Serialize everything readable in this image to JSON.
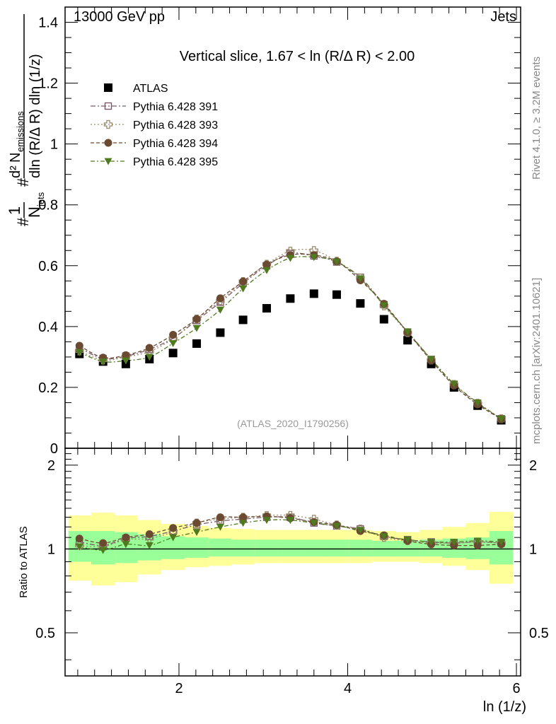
{
  "header": {
    "left": "13000 GeV pp",
    "right": "Jets"
  },
  "side_text": {
    "rivet": "Rivet 4.1.0, ≥ 3.2M events",
    "mcplots": "mcplots.cern.ch [arXiv:2401.10621]"
  },
  "colors": {
    "atlas": "#000000",
    "p391": "#7a5a6a",
    "p393": "#9a8a6a",
    "p394": "#6b4a32",
    "p395": "#4f7a1e",
    "band_green": "#99ff99",
    "band_yellow": "#ffff99"
  },
  "chart_data": [
    {
      "type": "scatter",
      "title": "Vertical slice, 1.67 < ln (R/Δ R) < 2.00",
      "xlabel": "ln (1/z)",
      "ylabel": "# 1/N_jets # d² N_emissions / dln (R/Δ R) dln (1/z)",
      "ylabel_parts": {
        "n_emissions": "N",
        "emissions_sub": "emissions",
        "d_squared": "d² ",
        "den": "dln (R/Δ R) dln (1/z)",
        "one": "1",
        "n_jets": "N",
        "jets_sub": "jets",
        "hash": "#"
      },
      "xlim": [
        0.65,
        6.05
      ],
      "ylim": [
        0,
        1.45
      ],
      "yticks": [
        "0",
        "0.2",
        "0.4",
        "0.6",
        "0.8",
        "1",
        "1.2",
        "1.4"
      ],
      "xticks": [
        "2",
        "4",
        "6"
      ],
      "legend_position": "top-left",
      "watermark": "(ATLAS_2020_I1790256)",
      "x": [
        0.82,
        1.1,
        1.37,
        1.65,
        1.93,
        2.21,
        2.49,
        2.76,
        3.04,
        3.32,
        3.6,
        3.87,
        4.15,
        4.43,
        4.71,
        4.99,
        5.26,
        5.54,
        5.82
      ],
      "series": [
        {
          "name": "ATLAS",
          "marker": "square-filled",
          "values": [
            0.31,
            0.285,
            0.277,
            0.293,
            0.313,
            0.344,
            0.38,
            0.422,
            0.46,
            0.492,
            0.508,
            0.505,
            0.476,
            0.424,
            0.355,
            0.277,
            0.2,
            0.14,
            0.092
          ]
        },
        {
          "name": "Pythia 6.428 391",
          "marker": "square-open",
          "values": [
            0.33,
            0.295,
            0.303,
            0.325,
            0.362,
            0.42,
            0.48,
            0.542,
            0.6,
            0.64,
            0.632,
            0.612,
            0.562,
            0.472,
            0.382,
            0.292,
            0.21,
            0.148,
            0.097
          ]
        },
        {
          "name": "Pythia 6.428 393",
          "marker": "cross-open",
          "values": [
            0.32,
            0.29,
            0.3,
            0.318,
            0.36,
            0.425,
            0.485,
            0.548,
            0.605,
            0.648,
            0.65,
            0.615,
            0.56,
            0.468,
            0.38,
            0.29,
            0.21,
            0.148,
            0.097
          ]
        },
        {
          "name": "Pythia 6.428 394",
          "marker": "circle-filled",
          "values": [
            0.337,
            0.298,
            0.306,
            0.33,
            0.373,
            0.425,
            0.493,
            0.548,
            0.604,
            0.635,
            0.635,
            0.614,
            0.552,
            0.475,
            0.381,
            0.288,
            0.206,
            0.144,
            0.096
          ]
        },
        {
          "name": "Pythia 6.428 395",
          "marker": "triangle-down-filled",
          "values": [
            0.315,
            0.285,
            0.288,
            0.3,
            0.345,
            0.395,
            0.455,
            0.525,
            0.585,
            0.625,
            0.628,
            0.613,
            0.558,
            0.47,
            0.383,
            0.293,
            0.212,
            0.15,
            0.097
          ]
        }
      ]
    },
    {
      "type": "scatter",
      "title": "",
      "xlabel": "ln (1/z)",
      "ylabel": "Ratio to ATLAS",
      "xlim": [
        0.65,
        6.05
      ],
      "ylim": [
        0.35,
        2.3
      ],
      "yticks": [
        "0.5",
        "1",
        "2"
      ],
      "reference_line": 1,
      "x": [
        0.82,
        1.1,
        1.37,
        1.65,
        1.93,
        2.21,
        2.49,
        2.76,
        3.04,
        3.32,
        3.6,
        3.87,
        4.15,
        4.43,
        4.71,
        4.99,
        5.26,
        5.54,
        5.82
      ],
      "x_edges": [
        0.69,
        0.96,
        1.24,
        1.51,
        1.79,
        2.07,
        2.35,
        2.62,
        2.9,
        3.18,
        3.46,
        3.74,
        4.01,
        4.29,
        4.57,
        4.85,
        5.12,
        5.4,
        5.68,
        5.96
      ],
      "band_inner": {
        "low": [
          0.9,
          0.88,
          0.89,
          0.91,
          0.92,
          0.93,
          0.94,
          0.94,
          0.94,
          0.94,
          0.94,
          0.94,
          0.94,
          0.94,
          0.94,
          0.94,
          0.93,
          0.92,
          0.88
        ],
        "high": [
          1.16,
          1.16,
          1.15,
          1.13,
          1.11,
          1.1,
          1.09,
          1.08,
          1.08,
          1.08,
          1.08,
          1.08,
          1.08,
          1.07,
          1.07,
          1.08,
          1.09,
          1.1,
          1.16
        ]
      },
      "band_outer": {
        "low": [
          0.77,
          0.74,
          0.76,
          0.81,
          0.84,
          0.86,
          0.87,
          0.88,
          0.89,
          0.89,
          0.89,
          0.89,
          0.89,
          0.9,
          0.9,
          0.89,
          0.87,
          0.84,
          0.75
        ]
      },
      "band_outer_high": [
        1.32,
        1.35,
        1.32,
        1.27,
        1.23,
        1.21,
        1.19,
        1.18,
        1.17,
        1.17,
        1.17,
        1.17,
        1.17,
        1.16,
        1.15,
        1.17,
        1.2,
        1.24,
        1.36
      ],
      "series": [
        {
          "name": "Pythia 6.428 391",
          "values": [
            1.06,
            1.03,
            1.09,
            1.11,
            1.16,
            1.22,
            1.26,
            1.28,
            1.3,
            1.3,
            1.24,
            1.21,
            1.18,
            1.11,
            1.08,
            1.06,
            1.05,
            1.06,
            1.05
          ]
        },
        {
          "name": "Pythia 6.428 393",
          "values": [
            1.03,
            1.02,
            1.08,
            1.09,
            1.15,
            1.24,
            1.28,
            1.3,
            1.32,
            1.32,
            1.28,
            1.22,
            1.18,
            1.1,
            1.07,
            1.05,
            1.05,
            1.06,
            1.05
          ]
        },
        {
          "name": "Pythia 6.428 394",
          "values": [
            1.09,
            1.05,
            1.1,
            1.13,
            1.19,
            1.24,
            1.3,
            1.3,
            1.31,
            1.29,
            1.25,
            1.22,
            1.16,
            1.12,
            1.07,
            1.04,
            1.03,
            1.03,
            1.04
          ]
        },
        {
          "name": "Pythia 6.428 395",
          "values": [
            1.02,
            0.99,
            1.04,
            1.03,
            1.1,
            1.15,
            1.2,
            1.24,
            1.27,
            1.27,
            1.24,
            1.21,
            1.17,
            1.11,
            1.08,
            1.06,
            1.06,
            1.07,
            1.06
          ]
        }
      ]
    }
  ]
}
